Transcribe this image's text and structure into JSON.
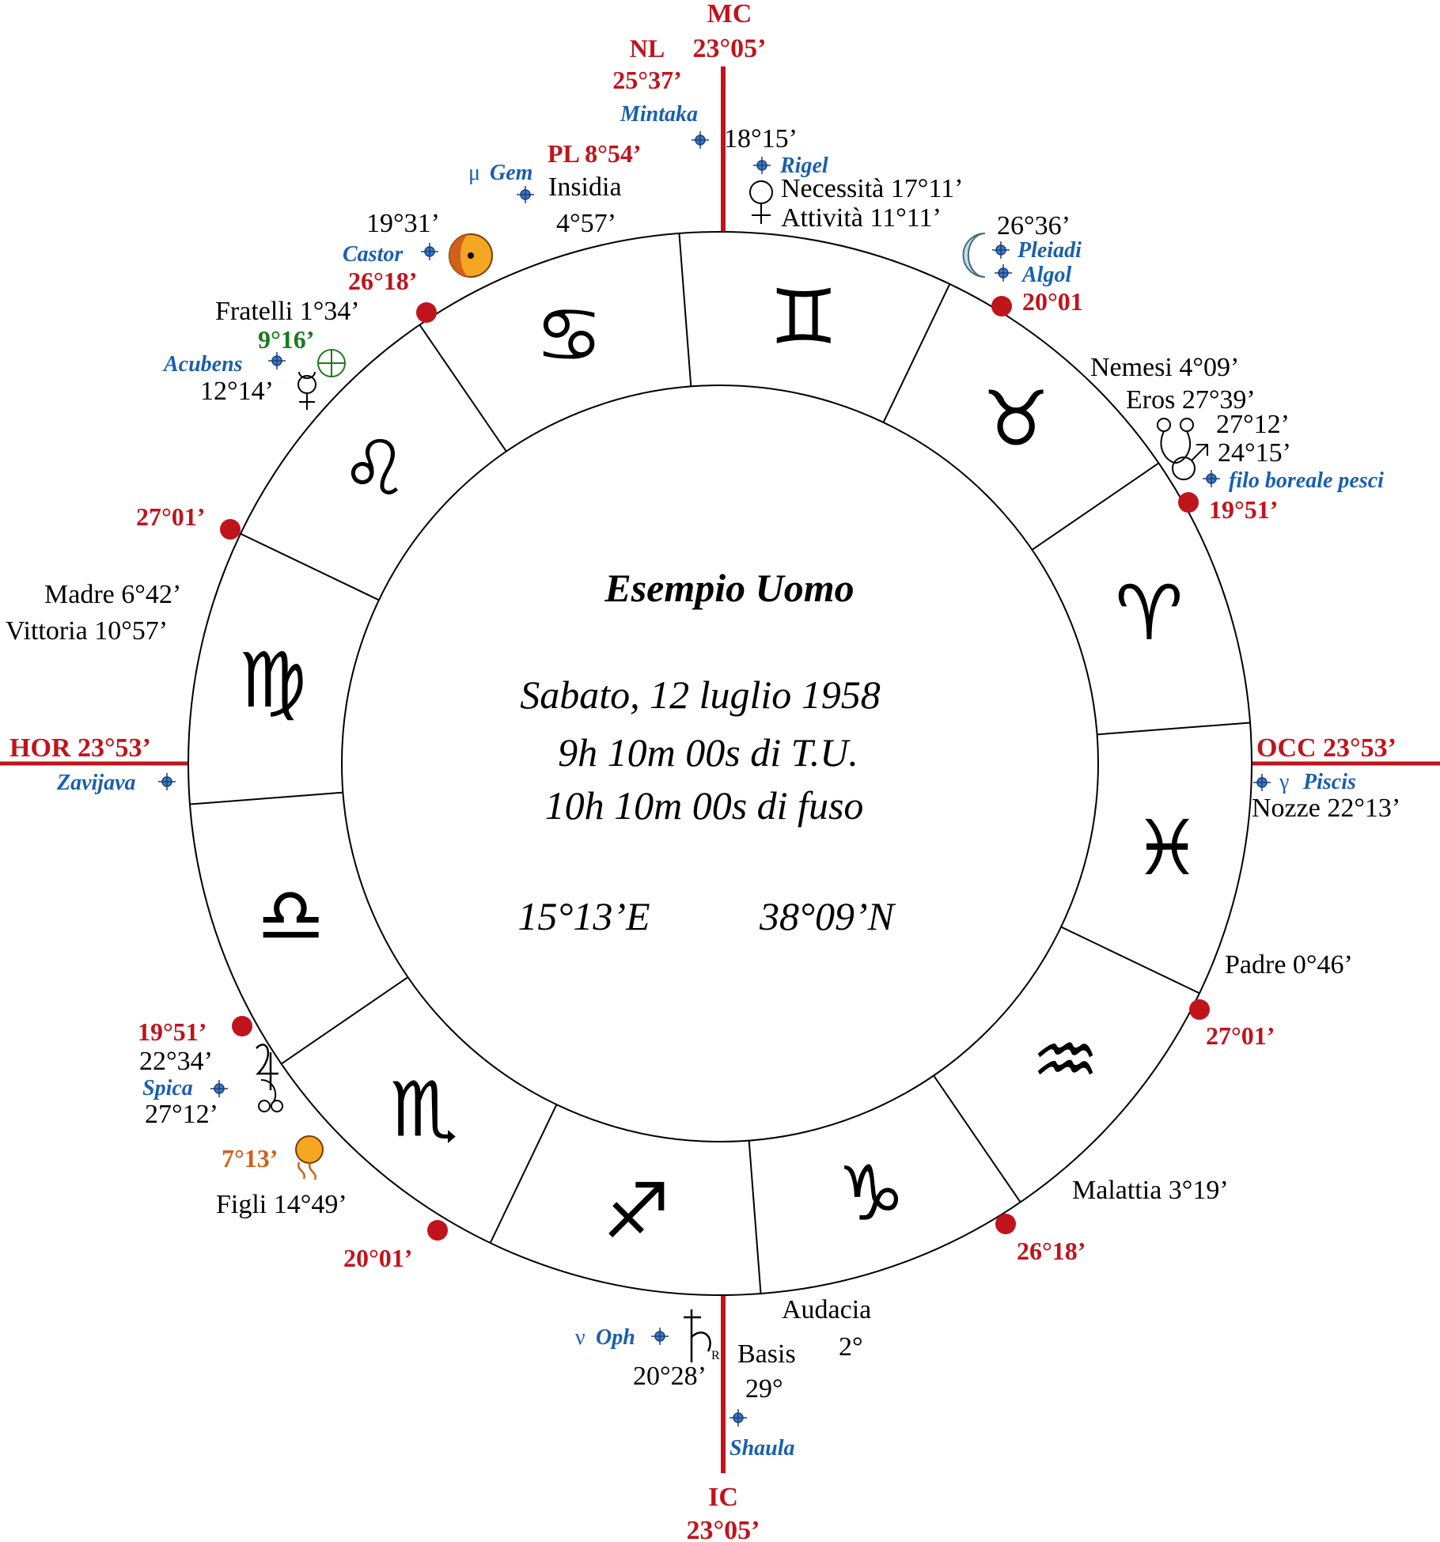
{
  "center": {
    "title": "Esempio Uomo",
    "line1": "Sabato, 12 luglio 1958",
    "line2": "9h 10m 00s di T.U.",
    "line3": "10h 10m 00s di fuso",
    "longitude": "15°13’E",
    "latitude": "38°09’N"
  },
  "signs": [
    {
      "name": "Gemini",
      "glyph": "♊"
    },
    {
      "name": "Taurus",
      "glyph": "♉"
    },
    {
      "name": "Aries",
      "glyph": "♈"
    },
    {
      "name": "Pisces",
      "glyph": "♓"
    },
    {
      "name": "Aquarius",
      "glyph": "♒"
    },
    {
      "name": "Capricorn",
      "glyph": "♑"
    },
    {
      "name": "Sagittarius",
      "glyph": "♐"
    },
    {
      "name": "Scorpio",
      "glyph": "♏"
    },
    {
      "name": "Libra",
      "glyph": "♎"
    },
    {
      "name": "Virgo",
      "glyph": "♍"
    },
    {
      "name": "Leo",
      "glyph": "♌"
    },
    {
      "name": "Cancer",
      "glyph": "♋"
    }
  ],
  "axes": {
    "mc_label": "MC",
    "mc_degree": "23°05’",
    "ic_label": "IC",
    "ic_degree": "23°05’",
    "hor": "HOR 23°53’",
    "occ": "OCC 23°53’"
  },
  "cusps": {
    "top_left_1": "26°18’",
    "top_right_1": "20°01",
    "left_1": "27°01’",
    "right_1": "19°51’",
    "left_2": "19°51’",
    "right_2": "27°01’",
    "bottom_left": "20°01’",
    "bottom_right": "26°18’"
  },
  "lunations": {
    "nl_label": "NL",
    "nl_degree": "25°37’",
    "pl": "PL 8°54’"
  },
  "stars": {
    "mintaka": "Mintaka",
    "rigel": "Rigel",
    "mu": "μ",
    "gem": "Gem",
    "castor": "Castor",
    "acubens": "Acubens",
    "pleiadi": "Pleiadi",
    "algol": "Algol",
    "filo": "filo boreale pesci",
    "zavijava": "Zavijava",
    "gamma": "γ",
    "piscis": "Piscis",
    "spica": "Spica",
    "nu": "ν",
    "oph": "Oph",
    "shaula": "Shaula"
  },
  "labels": {
    "mintaka_deg": "18°15’",
    "necessita": "Necessità 17°11’",
    "attivita": "Attività 11°11’",
    "insidia": "Insidia",
    "insidia_deg": "4°57’",
    "castor_deg": "19°31’",
    "fratelli": "Fratelli 1°34’",
    "green_deg": "9°16’",
    "mercury_deg": "12°14’",
    "moon_deg": "26°36’",
    "nemesi": "Nemesi 4°09’",
    "eros": "Eros 27°39’",
    "node_deg": "27°12’",
    "mars_deg": "24°15’",
    "madre": "Madre 6°42’",
    "vittoria": "Vittoria 10°57’",
    "nozze": "Nozze 22°13’",
    "padre": "Padre 0°46’",
    "jupiter_deg": "22°34’",
    "node2_deg": "27°12’",
    "fortune_deg": "7°13’",
    "figli": "Figli 14°49’",
    "malattia": "Malattia 3°19’",
    "audacia": "Audacia",
    "audacia_deg": "2°",
    "basis": "Basis",
    "basis_deg": "29°",
    "saturn_deg": "20°28’",
    "saturn_retro": "R"
  },
  "colors": {
    "red": "#c0141c",
    "blue": "#1a5fae",
    "green": "#1e7a1e",
    "orange": "#d2601a",
    "black": "#000000",
    "star_blue": "#3a7ec8"
  }
}
